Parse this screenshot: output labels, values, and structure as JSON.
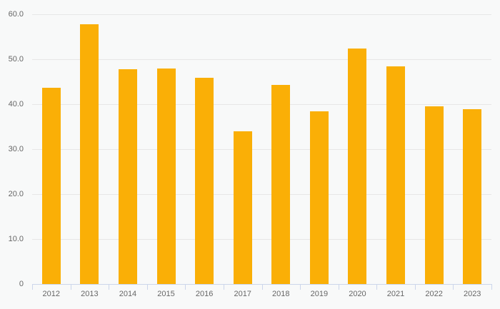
{
  "chart_data": {
    "type": "bar",
    "title": "",
    "xlabel": "",
    "ylabel": "",
    "categories": [
      "2012",
      "2013",
      "2014",
      "2015",
      "2016",
      "2017",
      "2018",
      "2019",
      "2020",
      "2021",
      "2022",
      "2023"
    ],
    "values": [
      43.7,
      57.7,
      47.7,
      47.9,
      45.9,
      34.0,
      44.3,
      38.4,
      52.4,
      48.4,
      39.5,
      38.9
    ],
    "series": [
      {
        "name": "value",
        "values": [
          43.7,
          57.7,
          47.7,
          47.9,
          45.9,
          34.0,
          44.3,
          38.4,
          52.4,
          48.4,
          39.5,
          38.9
        ]
      }
    ],
    "ylim": [
      0,
      60
    ],
    "y_ticks": [
      {
        "value": 0,
        "label": "0"
      },
      {
        "value": 10,
        "label": "10.0"
      },
      {
        "value": 20,
        "label": "20.0"
      },
      {
        "value": 30,
        "label": "30.0"
      },
      {
        "value": 40,
        "label": "40.0"
      },
      {
        "value": 50,
        "label": "50.0"
      },
      {
        "value": 60,
        "label": "60.0"
      }
    ],
    "grid": "horizontal-only",
    "legend": "none"
  },
  "colors": {
    "background": "#f8f9f9",
    "bar": "#faaf06",
    "gridline": "#e7e7e7",
    "axis": "#ccd6eb",
    "label": "#666666"
  }
}
